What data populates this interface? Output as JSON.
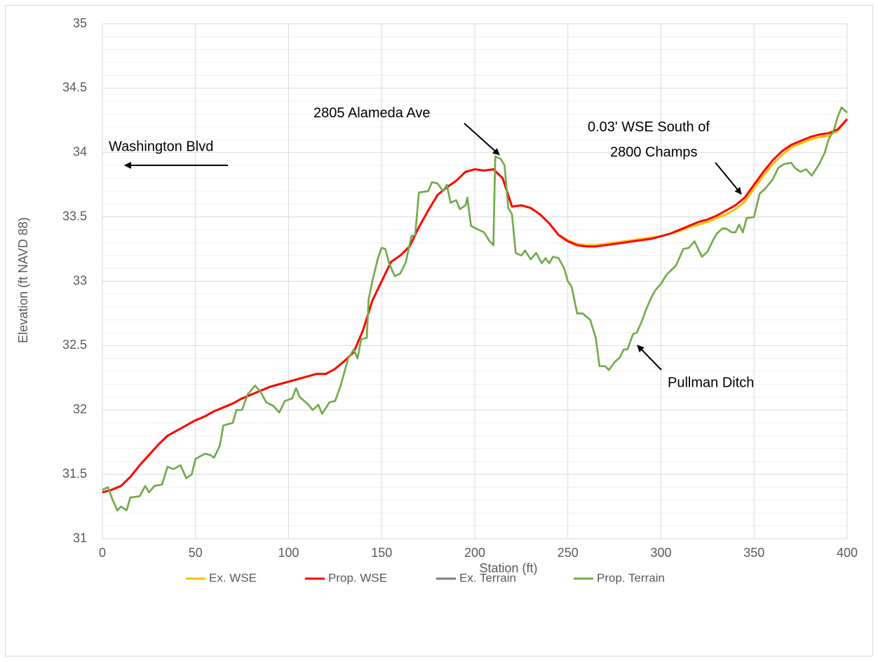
{
  "chart_data": {
    "type": "line",
    "xlabel": "Station (ft)",
    "ylabel": "Elevation (ft NAVD 88)",
    "xlim": [
      0,
      400
    ],
    "xticks": [
      0,
      50,
      100,
      150,
      200,
      250,
      300,
      350,
      400
    ],
    "ylim": [
      31,
      35
    ],
    "yticks": [
      31,
      31.5,
      32,
      32.5,
      33,
      33.5,
      34,
      34.5,
      35
    ],
    "grid": true,
    "minor_grid": true,
    "legend": "bottom",
    "annotations": [
      {
        "text": [
          "Washington Blvd"
        ]
      },
      {
        "text": [
          "2805 Alameda Ave"
        ]
      },
      {
        "text": [
          "0.03' WSE South of",
          "2800 Champs"
        ]
      },
      {
        "text": [
          "Pullman Ditch"
        ]
      }
    ],
    "series": [
      {
        "name": "Ex. WSE",
        "color": "#ffc000",
        "x": [
          0,
          5,
          10,
          15,
          20,
          25,
          30,
          35,
          40,
          45,
          50,
          55,
          60,
          65,
          70,
          75,
          80,
          85,
          90,
          95,
          100,
          105,
          110,
          115,
          120,
          125,
          130,
          135,
          140,
          145,
          150,
          155,
          160,
          165,
          170,
          175,
          180,
          185,
          190,
          195,
          200,
          205,
          210,
          215,
          220,
          225,
          230,
          235,
          240,
          245,
          250,
          255,
          260,
          265,
          270,
          275,
          280,
          285,
          290,
          295,
          300,
          305,
          310,
          315,
          320,
          325,
          330,
          335,
          340,
          345,
          350,
          355,
          360,
          365,
          370,
          375,
          380,
          385,
          390,
          395,
          400
        ],
        "values": [
          31.36,
          31.38,
          31.41,
          31.48,
          31.57,
          31.65,
          31.73,
          31.8,
          31.84,
          31.88,
          31.92,
          31.95,
          31.99,
          32.02,
          32.05,
          32.09,
          32.12,
          32.15,
          32.18,
          32.2,
          32.22,
          32.24,
          32.26,
          32.28,
          32.28,
          32.32,
          32.38,
          32.45,
          32.62,
          32.85,
          33.0,
          33.15,
          33.2,
          33.27,
          33.42,
          33.55,
          33.67,
          33.73,
          33.78,
          33.85,
          33.87,
          33.86,
          33.87,
          33.8,
          33.58,
          33.59,
          33.57,
          33.52,
          33.45,
          33.36,
          33.32,
          33.29,
          33.28,
          33.28,
          33.29,
          33.3,
          33.31,
          33.32,
          33.33,
          33.34,
          33.35,
          33.37,
          33.39,
          33.42,
          33.44,
          33.46,
          33.49,
          33.52,
          33.56,
          33.62,
          33.72,
          33.82,
          33.91,
          33.98,
          34.04,
          34.07,
          34.1,
          34.12,
          34.13,
          34.17,
          34.26
        ]
      },
      {
        "name": "Prop. WSE",
        "color": "#ff0000",
        "x": [
          0,
          5,
          10,
          15,
          20,
          25,
          30,
          35,
          40,
          45,
          50,
          55,
          60,
          65,
          70,
          75,
          80,
          85,
          90,
          95,
          100,
          105,
          110,
          115,
          120,
          125,
          130,
          135,
          140,
          145,
          150,
          155,
          160,
          165,
          170,
          175,
          180,
          185,
          190,
          195,
          200,
          205,
          210,
          215,
          220,
          225,
          230,
          235,
          240,
          245,
          250,
          255,
          260,
          265,
          270,
          275,
          280,
          285,
          290,
          295,
          300,
          305,
          310,
          315,
          320,
          325,
          330,
          335,
          340,
          345,
          350,
          355,
          360,
          365,
          370,
          375,
          380,
          385,
          390,
          395,
          400
        ],
        "values": [
          31.36,
          31.38,
          31.41,
          31.48,
          31.57,
          31.65,
          31.73,
          31.8,
          31.84,
          31.88,
          31.92,
          31.95,
          31.99,
          32.02,
          32.05,
          32.09,
          32.12,
          32.15,
          32.18,
          32.2,
          32.22,
          32.24,
          32.26,
          32.28,
          32.28,
          32.32,
          32.38,
          32.45,
          32.62,
          32.85,
          33.0,
          33.15,
          33.2,
          33.27,
          33.42,
          33.55,
          33.67,
          33.73,
          33.78,
          33.85,
          33.87,
          33.86,
          33.87,
          33.8,
          33.58,
          33.59,
          33.57,
          33.52,
          33.45,
          33.36,
          33.31,
          33.28,
          33.27,
          33.27,
          33.28,
          33.29,
          33.3,
          33.31,
          33.32,
          33.33,
          33.35,
          33.37,
          33.4,
          33.43,
          33.46,
          33.48,
          33.51,
          33.55,
          33.59,
          33.65,
          33.75,
          33.85,
          33.94,
          34.01,
          34.06,
          34.09,
          34.12,
          34.14,
          34.15,
          34.18,
          34.26
        ]
      },
      {
        "name": "Ex. Terrain",
        "color": "#7f7f7f",
        "x": [
          0,
          3,
          5,
          8,
          10,
          13,
          15,
          20,
          23,
          25,
          28,
          32,
          35,
          38,
          42,
          45,
          48,
          50,
          55,
          58,
          60,
          63,
          65,
          70,
          72,
          75,
          78,
          82,
          85,
          88,
          92,
          95,
          98,
          102,
          104,
          106,
          110,
          113,
          116,
          118,
          122,
          125,
          128,
          132,
          135,
          137,
          139,
          142,
          143,
          145,
          148,
          150,
          152,
          154,
          157,
          160,
          163,
          166,
          168,
          170,
          175,
          177,
          180,
          183,
          185,
          187,
          190,
          192,
          195,
          196,
          198,
          202,
          205,
          208,
          210,
          211,
          214,
          216,
          218,
          220,
          222,
          225,
          227,
          230,
          233,
          236,
          238,
          240,
          242,
          245,
          248,
          250,
          252,
          255,
          258,
          262,
          265,
          267,
          270,
          272,
          275,
          278,
          280,
          282,
          285,
          287,
          290,
          292,
          295,
          297,
          300,
          303,
          305,
          308,
          312,
          315,
          318,
          320,
          322,
          325,
          328,
          330,
          333,
          335,
          338,
          340,
          342,
          344,
          346,
          350,
          353,
          356,
          360,
          363,
          366,
          370,
          372,
          375,
          378,
          381,
          385,
          388,
          390,
          393,
          395,
          397,
          400
        ],
        "values": [
          31.38,
          31.4,
          31.32,
          31.22,
          31.25,
          31.22,
          31.32,
          31.33,
          31.41,
          31.36,
          31.41,
          31.42,
          31.56,
          31.54,
          31.57,
          31.47,
          31.5,
          31.62,
          31.66,
          31.65,
          31.63,
          31.72,
          31.88,
          31.9,
          32.0,
          32.0,
          32.12,
          32.19,
          32.14,
          32.06,
          32.03,
          31.98,
          32.07,
          32.09,
          32.17,
          32.1,
          32.05,
          32.0,
          32.04,
          31.97,
          32.06,
          32.07,
          32.19,
          32.4,
          32.47,
          32.4,
          32.55,
          32.56,
          32.86,
          33.0,
          33.18,
          33.26,
          33.25,
          33.14,
          33.04,
          33.06,
          33.15,
          33.35,
          33.36,
          33.69,
          33.7,
          33.77,
          33.76,
          33.7,
          33.75,
          33.61,
          33.63,
          33.56,
          33.59,
          33.65,
          33.43,
          33.4,
          33.38,
          33.31,
          33.28,
          33.97,
          33.95,
          33.9,
          33.57,
          33.52,
          33.22,
          33.2,
          33.24,
          33.17,
          33.22,
          33.14,
          33.18,
          33.14,
          33.19,
          33.18,
          33.1,
          33.0,
          32.96,
          32.75,
          32.75,
          32.7,
          32.56,
          32.34,
          32.34,
          32.31,
          32.37,
          32.41,
          32.47,
          32.47,
          32.59,
          32.6,
          32.7,
          32.78,
          32.88,
          32.93,
          32.98,
          33.05,
          33.08,
          33.12,
          33.25,
          33.26,
          33.31,
          33.25,
          33.19,
          33.23,
          33.32,
          33.37,
          33.41,
          33.41,
          33.38,
          33.38,
          33.44,
          33.38,
          33.49,
          33.5,
          33.68,
          33.72,
          33.79,
          33.88,
          33.91,
          33.92,
          33.88,
          33.85,
          33.87,
          33.82,
          33.91,
          34.0,
          34.1,
          34.18,
          34.28,
          34.35,
          34.31
        ]
      },
      {
        "name": "Prop. Terrain",
        "color": "#70ad47",
        "x": [
          0,
          3,
          5,
          8,
          10,
          13,
          15,
          20,
          23,
          25,
          28,
          32,
          35,
          38,
          42,
          45,
          48,
          50,
          55,
          58,
          60,
          63,
          65,
          70,
          72,
          75,
          78,
          82,
          85,
          88,
          92,
          95,
          98,
          102,
          104,
          106,
          110,
          113,
          116,
          118,
          122,
          125,
          128,
          132,
          135,
          137,
          139,
          142,
          143,
          145,
          148,
          150,
          152,
          154,
          157,
          160,
          163,
          166,
          168,
          170,
          175,
          177,
          180,
          183,
          185,
          187,
          190,
          192,
          195,
          196,
          198,
          202,
          205,
          208,
          210,
          211,
          214,
          216,
          218,
          220,
          222,
          225,
          227,
          230,
          233,
          236,
          238,
          240,
          242,
          245,
          248,
          250,
          252,
          255,
          258,
          262,
          265,
          267,
          270,
          272,
          275,
          278,
          280,
          282,
          285,
          287,
          290,
          292,
          295,
          297,
          300,
          303,
          305,
          308,
          312,
          315,
          318,
          320,
          322,
          325,
          328,
          330,
          333,
          335,
          338,
          340,
          342,
          344,
          346,
          350,
          353,
          356,
          360,
          363,
          366,
          370,
          372,
          375,
          378,
          381,
          385,
          388,
          390,
          393,
          395,
          397,
          400
        ],
        "values": [
          31.38,
          31.4,
          31.32,
          31.22,
          31.25,
          31.22,
          31.32,
          31.33,
          31.41,
          31.36,
          31.41,
          31.42,
          31.56,
          31.54,
          31.57,
          31.47,
          31.5,
          31.62,
          31.66,
          31.65,
          31.63,
          31.72,
          31.88,
          31.9,
          32.0,
          32.0,
          32.12,
          32.19,
          32.14,
          32.06,
          32.03,
          31.98,
          32.07,
          32.09,
          32.17,
          32.1,
          32.05,
          32.0,
          32.04,
          31.97,
          32.06,
          32.07,
          32.19,
          32.4,
          32.47,
          32.4,
          32.55,
          32.56,
          32.86,
          33.0,
          33.18,
          33.26,
          33.25,
          33.14,
          33.04,
          33.06,
          33.15,
          33.35,
          33.36,
          33.69,
          33.7,
          33.77,
          33.76,
          33.7,
          33.75,
          33.61,
          33.63,
          33.56,
          33.59,
          33.65,
          33.43,
          33.4,
          33.38,
          33.31,
          33.28,
          33.97,
          33.95,
          33.9,
          33.57,
          33.52,
          33.22,
          33.2,
          33.24,
          33.17,
          33.22,
          33.14,
          33.18,
          33.14,
          33.19,
          33.18,
          33.1,
          33.0,
          32.96,
          32.75,
          32.75,
          32.7,
          32.56,
          32.34,
          32.34,
          32.31,
          32.37,
          32.41,
          32.47,
          32.47,
          32.59,
          32.6,
          32.7,
          32.78,
          32.88,
          32.93,
          32.98,
          33.05,
          33.08,
          33.12,
          33.25,
          33.26,
          33.31,
          33.25,
          33.19,
          33.23,
          33.32,
          33.37,
          33.41,
          33.41,
          33.38,
          33.38,
          33.44,
          33.38,
          33.49,
          33.5,
          33.68,
          33.72,
          33.79,
          33.88,
          33.91,
          33.92,
          33.88,
          33.85,
          33.87,
          33.82,
          33.91,
          34.0,
          34.1,
          34.18,
          34.28,
          34.35,
          34.31
        ]
      }
    ]
  }
}
